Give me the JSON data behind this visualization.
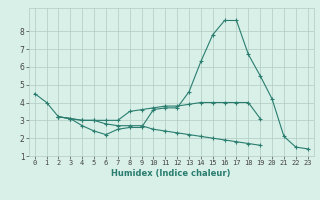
{
  "xlabel": "Humidex (Indice chaleur)",
  "x_values": [
    0,
    1,
    2,
    3,
    4,
    5,
    6,
    7,
    8,
    9,
    10,
    11,
    12,
    13,
    14,
    15,
    16,
    17,
    18,
    19,
    20,
    21,
    22,
    23
  ],
  "line1": [
    4.5,
    4.0,
    3.2,
    3.1,
    2.7,
    2.4,
    2.2,
    2.5,
    2.6,
    2.6,
    3.6,
    3.7,
    3.7,
    4.6,
    6.3,
    7.8,
    8.6,
    8.6,
    6.7,
    5.5,
    4.2,
    2.1,
    1.5,
    1.4
  ],
  "line2": [
    null,
    null,
    3.2,
    3.1,
    3.0,
    3.0,
    3.0,
    3.0,
    3.5,
    3.6,
    3.7,
    3.8,
    3.8,
    3.9,
    4.0,
    4.0,
    4.0,
    4.0,
    4.0,
    3.1,
    null,
    null,
    null,
    null
  ],
  "line3": [
    null,
    null,
    3.2,
    3.1,
    3.0,
    3.0,
    2.8,
    2.7,
    2.7,
    2.7,
    2.5,
    2.4,
    2.3,
    2.2,
    2.1,
    2.0,
    1.9,
    1.8,
    1.7,
    1.6,
    null,
    null,
    null,
    null
  ],
  "bg_color": "#d8f0e8",
  "line_color": "#2a7d6f",
  "grid_color": "#b0ccc4",
  "ylim": [
    1,
    9
  ],
  "xlim": [
    -0.5,
    23.5
  ],
  "yticks": [
    1,
    2,
    3,
    4,
    5,
    6,
    7,
    8
  ],
  "xticks": [
    0,
    1,
    2,
    3,
    4,
    5,
    6,
    7,
    8,
    9,
    10,
    11,
    12,
    13,
    14,
    15,
    16,
    17,
    18,
    19,
    20,
    21,
    22,
    23
  ],
  "tick_fontsize": 5.0,
  "xlabel_fontsize": 6.0,
  "line_width": 0.8,
  "marker_size": 3.0
}
